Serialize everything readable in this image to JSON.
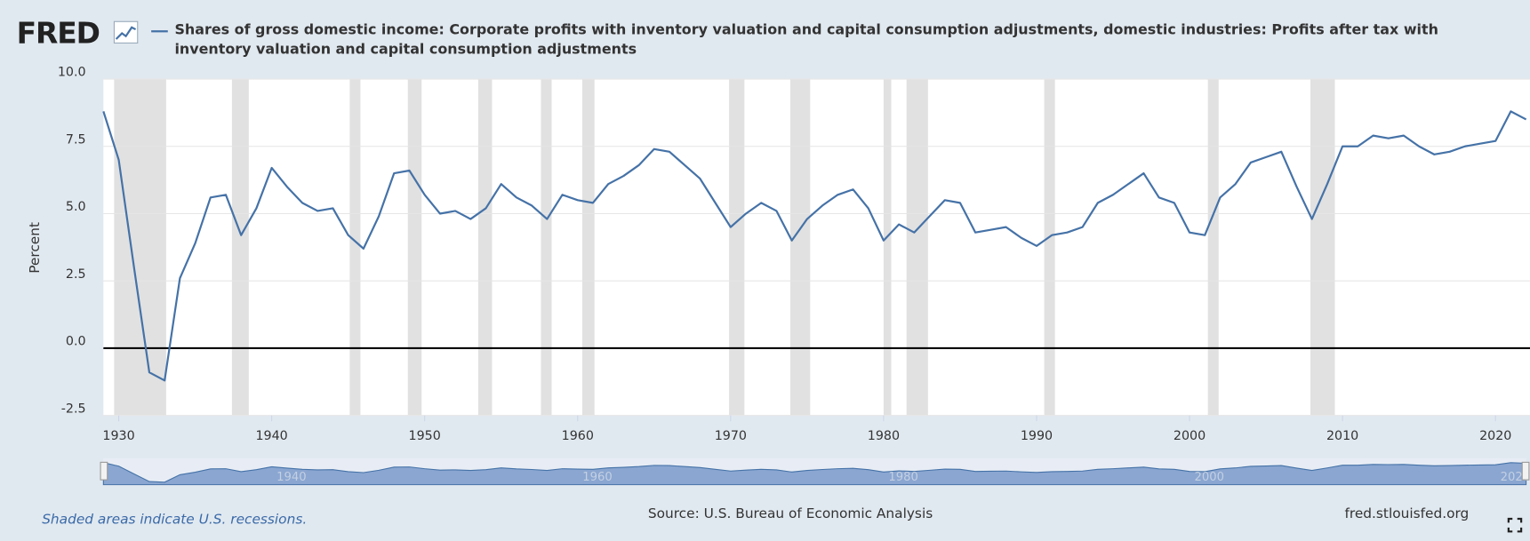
{
  "logo": "FRED",
  "chart_data": {
    "type": "line",
    "title": "Shares of gross domestic income: Corporate profits with inventory valuation and capital consumption adjustments, domestic industries: Profits after tax with inventory valuation and capital consumption adjustments",
    "y_label": "Percent",
    "x": [
      1929,
      1930,
      1931,
      1932,
      1933,
      1934,
      1935,
      1936,
      1937,
      1938,
      1939,
      1940,
      1941,
      1942,
      1943,
      1944,
      1945,
      1946,
      1947,
      1948,
      1949,
      1950,
      1951,
      1952,
      1953,
      1954,
      1955,
      1956,
      1957,
      1958,
      1959,
      1960,
      1961,
      1962,
      1963,
      1964,
      1965,
      1966,
      1967,
      1968,
      1969,
      1970,
      1971,
      1972,
      1973,
      1974,
      1975,
      1976,
      1977,
      1978,
      1979,
      1980,
      1981,
      1982,
      1983,
      1984,
      1985,
      1986,
      1987,
      1988,
      1989,
      1990,
      1991,
      1992,
      1993,
      1994,
      1995,
      1996,
      1997,
      1998,
      1999,
      2000,
      2001,
      2002,
      2003,
      2004,
      2005,
      2006,
      2007,
      2008,
      2009,
      2010,
      2011,
      2012,
      2013,
      2014,
      2015,
      2016,
      2017,
      2018,
      2019,
      2020,
      2021,
      2022
    ],
    "series": [
      {
        "name": "Shares of gross domestic income: Corporate profits with inventory valuation and capital consumption adjustments, domestic industries: Profits after tax with inventory valuation and capital consumption adjustments",
        "color": "#4572a7",
        "values": [
          8.8,
          7.0,
          3.0,
          -0.9,
          -1.2,
          2.6,
          3.9,
          5.6,
          5.7,
          4.2,
          5.2,
          6.7,
          6.0,
          5.4,
          5.1,
          5.2,
          4.2,
          3.7,
          4.9,
          6.5,
          6.6,
          5.7,
          5.0,
          5.1,
          4.8,
          5.2,
          6.1,
          5.6,
          5.3,
          4.8,
          5.7,
          5.5,
          5.4,
          6.1,
          6.4,
          6.8,
          7.4,
          7.3,
          6.8,
          6.3,
          5.4,
          4.5,
          5.0,
          5.4,
          5.1,
          4.0,
          4.8,
          5.3,
          5.7,
          5.9,
          5.2,
          4.0,
          4.6,
          4.3,
          4.9,
          5.5,
          5.4,
          4.3,
          4.4,
          4.5,
          4.1,
          3.8,
          4.2,
          4.3,
          4.5,
          5.4,
          5.7,
          6.1,
          6.5,
          5.6,
          5.4,
          4.3,
          4.2,
          5.6,
          6.1,
          6.9,
          7.1,
          7.3,
          6.0,
          4.8,
          6.1,
          7.5,
          7.5,
          7.9,
          7.8,
          7.9,
          7.5,
          7.2,
          7.3,
          7.5,
          7.6,
          7.7,
          8.8,
          8.5
        ]
      }
    ],
    "xlim": [
      1929,
      2022
    ],
    "ylim": [
      -2.5,
      10
    ],
    "xticks": [
      1930,
      1940,
      1950,
      1960,
      1970,
      1980,
      1990,
      2000,
      2010,
      2020
    ],
    "yticks": [
      {
        "value": 10,
        "label": "10.0"
      },
      7.5,
      {
        "value": 5,
        "label": "5.0"
      },
      2.5,
      {
        "value": 0,
        "label": "0.0"
      },
      -2.5
    ],
    "recessions": [
      [
        1929.7,
        1933.1
      ],
      [
        1937.4,
        1938.5
      ],
      [
        1945.1,
        1945.8
      ],
      [
        1948.9,
        1949.8
      ],
      [
        1953.5,
        1954.4
      ],
      [
        1957.6,
        1958.3
      ],
      [
        1960.3,
        1961.1
      ],
      [
        1969.9,
        1970.9
      ],
      [
        1973.9,
        1975.2
      ],
      [
        1980.0,
        1980.5
      ],
      [
        1981.5,
        1982.9
      ],
      [
        1990.5,
        1991.2
      ],
      [
        2001.2,
        2001.9
      ],
      [
        2007.9,
        2009.5
      ]
    ],
    "recession_color": "#e1e1e1",
    "grid": true,
    "navigator_ticks": [
      1940,
      1960,
      1980,
      2000,
      2020
    ],
    "note": "Shaded areas indicate U.S. recessions.",
    "source": "Source: U.S. Bureau of Economic Analysis",
    "site": "fred.stlouisfed.org"
  }
}
